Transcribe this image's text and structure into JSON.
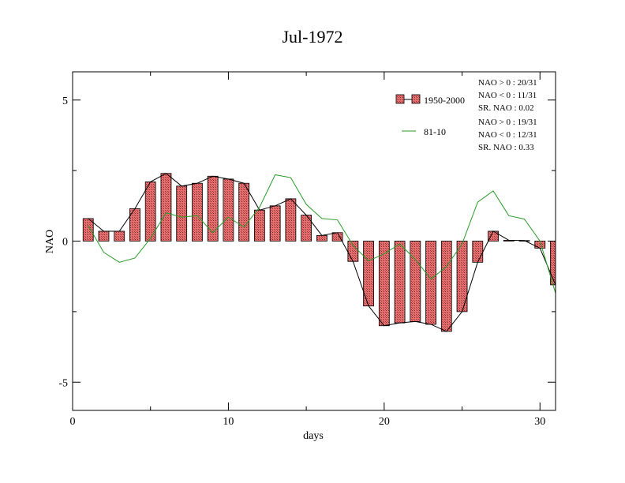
{
  "chart_data": {
    "type": "bar",
    "title": "Jul-1972",
    "xlabel": "days",
    "ylabel": "NAO",
    "xlim": [
      0,
      31
    ],
    "ylim": [
      -6,
      6
    ],
    "x_ticks": [
      0,
      10,
      20,
      30
    ],
    "y_ticks": [
      -5,
      0,
      5
    ],
    "x_tick_labels": [
      "0",
      "10",
      "20",
      "30"
    ],
    "y_tick_labels": [
      "-5",
      "0",
      "5"
    ],
    "x": [
      1,
      2,
      3,
      4,
      5,
      6,
      7,
      8,
      9,
      10,
      11,
      12,
      13,
      14,
      15,
      16,
      17,
      18,
      19,
      20,
      21,
      22,
      23,
      24,
      25,
      26,
      27,
      28,
      29,
      30,
      31
    ],
    "series": [
      {
        "name": "1950-2000",
        "kind": "bar",
        "color": "#e87070",
        "values": [
          0.8,
          0.35,
          0.35,
          1.15,
          2.1,
          2.4,
          1.95,
          2.05,
          2.3,
          2.2,
          2.05,
          1.1,
          1.25,
          1.5,
          0.92,
          0.2,
          0.3,
          -0.72,
          -2.3,
          -3.0,
          -2.9,
          -2.85,
          -2.95,
          -3.2,
          -2.5,
          -0.75,
          0.35,
          0.03,
          0.02,
          -0.25,
          -1.55
        ]
      },
      {
        "name": "81-10",
        "kind": "line",
        "color": "#2a9a2a",
        "values": [
          0.55,
          -0.4,
          -0.75,
          -0.6,
          0.1,
          1.0,
          0.85,
          0.9,
          0.3,
          0.85,
          0.5,
          1.2,
          2.35,
          2.25,
          1.3,
          0.8,
          0.75,
          -0.15,
          -0.7,
          -0.45,
          -0.1,
          -0.65,
          -1.35,
          -0.9,
          -0.1,
          1.38,
          1.78,
          0.9,
          0.78,
          0.0,
          -1.85
        ]
      }
    ],
    "legend": {
      "placement": "top-right",
      "stats": [
        [
          "NAO > 0 : 20/31",
          "NAO < 0 : 11/31",
          "SR. NAO :  0.02"
        ],
        [
          "NAO > 0 : 19/31",
          "NAO < 0 : 12/31",
          "SR. NAO :  0.33"
        ]
      ]
    },
    "grid": false
  }
}
